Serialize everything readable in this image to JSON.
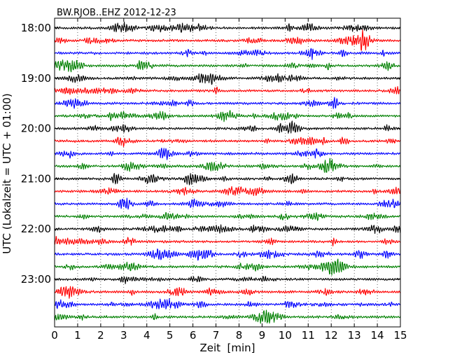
{
  "chart_data": {
    "type": "line",
    "title": "BW.RJOB..EHZ 2012-12-23",
    "xlabel": "Zeit  [min]",
    "ylabel": "UTC (Lokalzeit = UTC + 01:00)",
    "xlim": [
      0,
      15
    ],
    "x_ticks": [
      "0",
      "1",
      "2",
      "3",
      "4",
      "5",
      "6",
      "7",
      "8",
      "9",
      "10",
      "11",
      "12",
      "13",
      "14",
      "15"
    ],
    "y_tick_labels": [
      "18:00",
      "19:00",
      "20:00",
      "21:00",
      "22:00",
      "23:00"
    ],
    "grid": "vertical dotted at each minute",
    "trace_count": 24,
    "minutes_per_trace": 15,
    "trace_colors": [
      "#000000",
      "#ff0000",
      "#0000ff",
      "#008000"
    ],
    "trace_start_times": [
      "18:00",
      "18:15",
      "18:30",
      "18:45",
      "19:00",
      "19:15",
      "19:30",
      "19:45",
      "20:00",
      "20:15",
      "20:30",
      "20:45",
      "21:00",
      "21:15",
      "21:30",
      "21:45",
      "22:00",
      "22:15",
      "22:30",
      "22:45",
      "23:00",
      "23:15",
      "23:30",
      "23:45"
    ]
  }
}
